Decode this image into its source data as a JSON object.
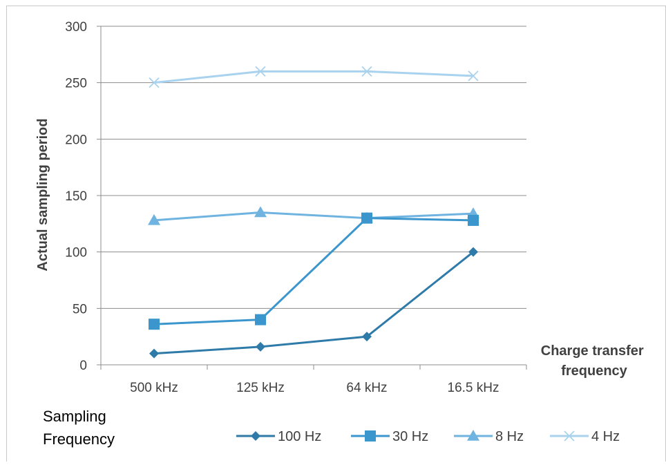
{
  "chart_data": {
    "type": "line",
    "categories": [
      "500 kHz",
      "125 kHz",
      "64 kHz",
      "16.5 kHz"
    ],
    "series": [
      {
        "name": "100 Hz",
        "values": [
          10,
          16,
          25,
          100
        ],
        "color": "#2e7aa8",
        "marker": "diamond"
      },
      {
        "name": "30 Hz",
        "values": [
          36,
          40,
          130,
          128
        ],
        "color": "#3a96cc",
        "marker": "square"
      },
      {
        "name": "8 Hz",
        "values": [
          128,
          135,
          130,
          134
        ],
        "color": "#6fb3e0",
        "marker": "triangle"
      },
      {
        "name": "4 Hz",
        "values": [
          250,
          260,
          260,
          256
        ],
        "color": "#a9d2ee",
        "marker": "x"
      }
    ],
    "title": "",
    "xlabel": "Charge transfer frequency",
    "xlabel_lines": [
      "Charge transfer",
      "frequency"
    ],
    "ylabel": "Actual sampling period",
    "ylim": [
      0,
      300
    ],
    "yticks": [
      "0",
      "50",
      "100",
      "150",
      "200",
      "250",
      "300"
    ],
    "grid": true,
    "legend_title": "Sampling Frequency",
    "legend_title_lines": [
      "Sampling",
      "Frequency"
    ],
    "legend_position": "bottom"
  }
}
